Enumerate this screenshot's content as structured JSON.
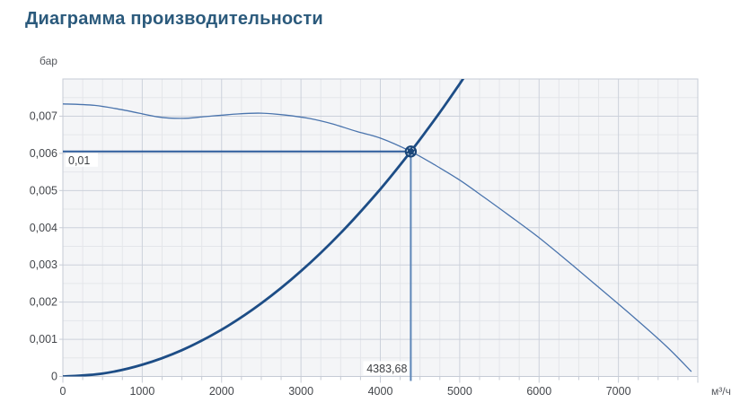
{
  "title": "Диаграмма производительности",
  "colors": {
    "title": "#2b5a7c",
    "plot_bg": "#f4f5f7",
    "grid_minor": "#e4e6ea",
    "grid_major": "#ccd1db",
    "plot_border": "#c6cbd5",
    "tick": "#c6cbd5",
    "axis_text": "#44474c",
    "fan_curve": "#4a74ad",
    "system_curve": "#1d4d86",
    "op_line": "#2d5c9c",
    "op_guide": "#5d86b8",
    "marker": "#1a4679",
    "marker_ring": "#dfe7f2",
    "label_text": "#3c3e42",
    "label_bg": "#ffffff"
  },
  "chart_data": {
    "type": "line",
    "title": "Диаграмма производительности",
    "y_unit": "бар",
    "x_unit": "м³/ч",
    "xlim": [
      0,
      8000
    ],
    "ylim": [
      0,
      0.008
    ],
    "grid": {
      "minor_x_step": 250,
      "major_x_step": 1000,
      "minor_y_step": 0.0005,
      "major_y_step": 0.001
    },
    "x_ticks": [
      0,
      1000,
      2000,
      3000,
      4000,
      5000,
      6000,
      7000
    ],
    "x_tick_labels": [
      "0",
      "1000",
      "2000",
      "3000",
      "4000",
      "5000",
      "6000",
      "7000"
    ],
    "y_ticks": [
      0,
      0.001,
      0.002,
      0.003,
      0.004,
      0.005,
      0.006,
      0.007
    ],
    "y_tick_labels": [
      "0",
      "0,001",
      "0,002",
      "0,003",
      "0,004",
      "0,005",
      "0,006",
      "0,007"
    ],
    "legend": "none",
    "series": [
      {
        "name": "fan-curve",
        "role": "fan performance curve",
        "width": 1.3,
        "points": [
          [
            0,
            0.00733
          ],
          [
            400,
            0.00729
          ],
          [
            800,
            0.00715
          ],
          [
            1200,
            0.00698
          ],
          [
            1500,
            0.00694
          ],
          [
            1800,
            0.00699
          ],
          [
            2200,
            0.00706
          ],
          [
            2500,
            0.00708
          ],
          [
            2800,
            0.00703
          ],
          [
            3100,
            0.00694
          ],
          [
            3400,
            0.00679
          ],
          [
            3700,
            0.00659
          ],
          [
            4000,
            0.00641
          ],
          [
            4383.68,
            0.00605
          ],
          [
            4700,
            0.00567
          ],
          [
            5000,
            0.00528
          ],
          [
            5300,
            0.00483
          ],
          [
            5700,
            0.00421
          ],
          [
            6000,
            0.00373
          ],
          [
            6400,
            0.00303
          ],
          [
            6800,
            0.00231
          ],
          [
            7200,
            0.00158
          ],
          [
            7600,
            0.00082
          ],
          [
            7920,
            0.00013
          ]
        ]
      },
      {
        "name": "system-curve",
        "role": "system resistance parabola",
        "width": 2.8,
        "points": [
          [
            0,
            0
          ],
          [
            500,
            7.9e-05
          ],
          [
            1000,
            0.000315
          ],
          [
            1500,
            0.000708
          ],
          [
            2000,
            0.001259
          ],
          [
            2500,
            0.001967
          ],
          [
            3000,
            0.002833
          ],
          [
            3500,
            0.003857
          ],
          [
            4000,
            0.005037
          ],
          [
            4383.68,
            0.00605
          ],
          [
            4600,
            0.006662
          ],
          [
            4800,
            0.007253
          ],
          [
            5000,
            0.00787
          ],
          [
            5120,
            0.008252
          ]
        ]
      }
    ],
    "operating_point": {
      "x": 4383.68,
      "y": 0.00605,
      "x_label": "4383,68",
      "y_label": "0,01"
    }
  }
}
